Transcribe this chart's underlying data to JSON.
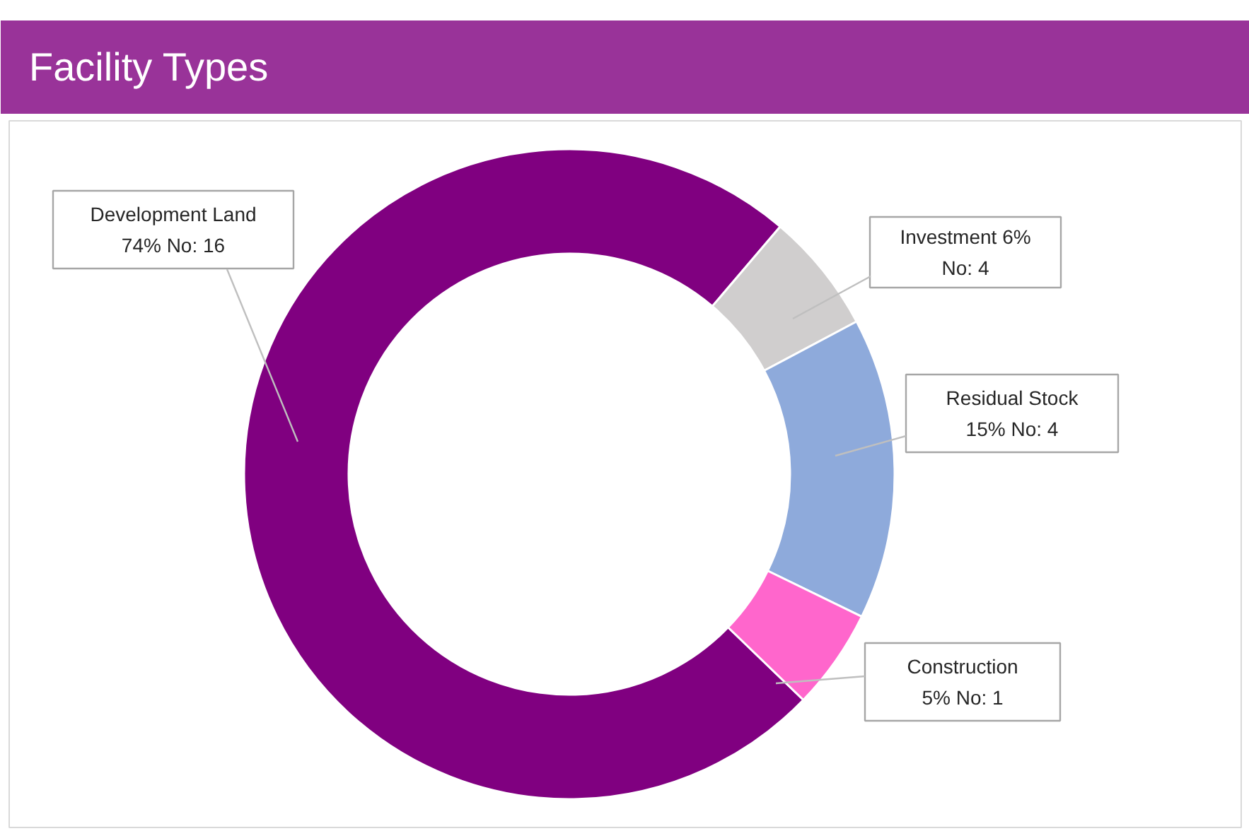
{
  "chart_data": {
    "type": "donut",
    "title": "Facility Types",
    "categories": [
      "Development Land",
      "Investment",
      "Residual Stock",
      "Construction"
    ],
    "values": [
      74,
      6,
      15,
      5
    ],
    "colors": [
      "#800080",
      "#d0cece",
      "#8eaadb",
      "#ff66cc"
    ],
    "value_labels": [
      "74% No: 16",
      "6% No: 4",
      "15% No: 4",
      "5% No: 1"
    ],
    "legend": false
  }
}
